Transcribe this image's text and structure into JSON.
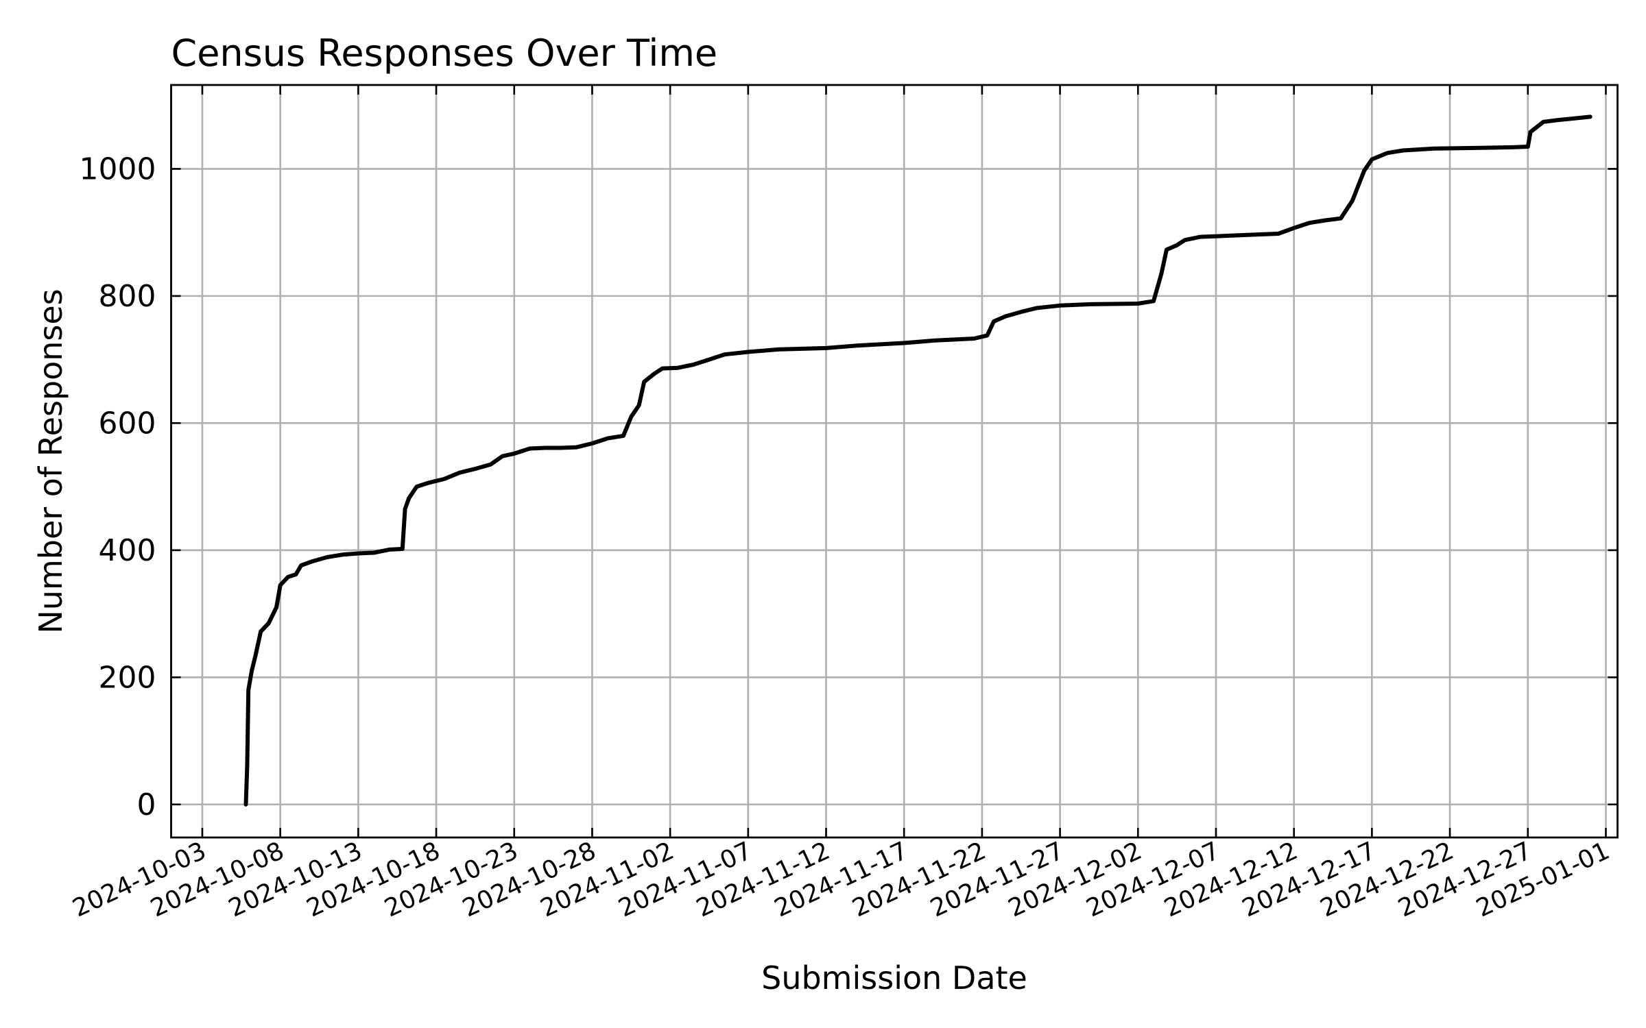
{
  "chart_data": {
    "type": "line",
    "title": "Census Responses Over Time",
    "xlabel": "Submission Date",
    "ylabel": "Number of Responses",
    "xlim": [
      "2024-10-03",
      "2025-01-01"
    ],
    "ylim": [
      -52,
      1132
    ],
    "grid": true,
    "y_ticks": [
      0,
      200,
      400,
      600,
      800,
      1000
    ],
    "x_ticks": [
      "2024-10-03",
      "2024-10-08",
      "2024-10-13",
      "2024-10-18",
      "2024-10-23",
      "2024-10-28",
      "2024-11-02",
      "2024-11-07",
      "2024-11-12",
      "2024-11-17",
      "2024-11-22",
      "2024-11-27",
      "2024-12-02",
      "2024-12-07",
      "2024-12-12",
      "2024-12-17",
      "2024-12-22",
      "2024-12-27",
      "2025-01-01"
    ],
    "series": [
      {
        "color": "#000000",
        "points": [
          [
            "2024-10-05T19:00",
            0
          ],
          [
            "2024-10-05T21:00",
            60
          ],
          [
            "2024-10-05T23:00",
            180
          ],
          [
            "2024-10-06T04:00",
            210
          ],
          [
            "2024-10-06T10:00",
            235
          ],
          [
            "2024-10-06T18:00",
            272
          ],
          [
            "2024-10-07T06:00",
            285
          ],
          [
            "2024-10-07T18:00",
            310
          ],
          [
            "2024-10-08T00:00",
            345
          ],
          [
            "2024-10-08T12:00",
            358
          ],
          [
            "2024-10-09T00:00",
            362
          ],
          [
            "2024-10-09T08:00",
            376
          ],
          [
            "2024-10-10T00:00",
            382
          ],
          [
            "2024-10-11T00:00",
            389
          ],
          [
            "2024-10-12T00:00",
            393
          ],
          [
            "2024-10-13T00:00",
            395
          ],
          [
            "2024-10-14T00:00",
            396
          ],
          [
            "2024-10-15T00:00",
            401
          ],
          [
            "2024-10-15T20:00",
            402
          ],
          [
            "2024-10-16T00:00",
            465
          ],
          [
            "2024-10-16T06:00",
            482
          ],
          [
            "2024-10-16T18:00",
            500
          ],
          [
            "2024-10-17T12:00",
            506
          ],
          [
            "2024-10-18T12:00",
            512
          ],
          [
            "2024-10-19T12:00",
            522
          ],
          [
            "2024-10-20T12:00",
            528
          ],
          [
            "2024-10-21T12:00",
            535
          ],
          [
            "2024-10-22T06:00",
            548
          ],
          [
            "2024-10-23T00:00",
            552
          ],
          [
            "2024-10-24T00:00",
            560
          ],
          [
            "2024-10-25T00:00",
            561
          ],
          [
            "2024-10-26T00:00",
            561
          ],
          [
            "2024-10-27T00:00",
            562
          ],
          [
            "2024-10-28T00:00",
            568
          ],
          [
            "2024-10-29T00:00",
            576
          ],
          [
            "2024-10-30T00:00",
            580
          ],
          [
            "2024-10-30T12:00",
            610
          ],
          [
            "2024-10-31T00:00",
            628
          ],
          [
            "2024-10-31T08:00",
            665
          ],
          [
            "2024-11-01T00:00",
            678
          ],
          [
            "2024-11-01T12:00",
            686
          ],
          [
            "2024-11-02T12:00",
            687
          ],
          [
            "2024-11-03T12:00",
            692
          ],
          [
            "2024-11-04T12:00",
            700
          ],
          [
            "2024-11-05T12:00",
            708
          ],
          [
            "2024-11-07T00:00",
            712
          ],
          [
            "2024-11-09T00:00",
            716
          ],
          [
            "2024-11-12T00:00",
            718
          ],
          [
            "2024-11-14T00:00",
            722
          ],
          [
            "2024-11-17T00:00",
            726
          ],
          [
            "2024-11-19T00:00",
            730
          ],
          [
            "2024-11-21T12:00",
            733
          ],
          [
            "2024-11-22T08:00",
            738
          ],
          [
            "2024-11-22T18:00",
            760
          ],
          [
            "2024-11-23T12:00",
            768
          ],
          [
            "2024-11-24T12:00",
            775
          ],
          [
            "2024-11-25T12:00",
            781
          ],
          [
            "2024-11-27T00:00",
            785
          ],
          [
            "2024-11-29T00:00",
            787
          ],
          [
            "2024-12-02T00:00",
            788
          ],
          [
            "2024-12-03T00:00",
            792
          ],
          [
            "2024-12-03T12:00",
            835
          ],
          [
            "2024-12-03T20:00",
            873
          ],
          [
            "2024-12-04T12:00",
            880
          ],
          [
            "2024-12-05T00:00",
            888
          ],
          [
            "2024-12-06T00:00",
            893
          ],
          [
            "2024-12-08T00:00",
            895
          ],
          [
            "2024-12-10T00:00",
            897
          ],
          [
            "2024-12-11T00:00",
            898
          ],
          [
            "2024-12-12T00:00",
            907
          ],
          [
            "2024-12-13T00:00",
            915
          ],
          [
            "2024-12-14T00:00",
            919
          ],
          [
            "2024-12-15T00:00",
            922
          ],
          [
            "2024-12-15T18:00",
            950
          ],
          [
            "2024-12-16T12:00",
            997
          ],
          [
            "2024-12-17T00:00",
            1015
          ],
          [
            "2024-12-18T00:00",
            1025
          ],
          [
            "2024-12-19T00:00",
            1029
          ],
          [
            "2024-12-21T00:00",
            1032
          ],
          [
            "2024-12-24T00:00",
            1033
          ],
          [
            "2024-12-26T00:00",
            1034
          ],
          [
            "2024-12-27T00:00",
            1035
          ],
          [
            "2024-12-27T04:00",
            1058
          ],
          [
            "2024-12-28T00:00",
            1074
          ],
          [
            "2024-12-29T00:00",
            1077
          ],
          [
            "2024-12-31T00:00",
            1082
          ]
        ]
      }
    ]
  }
}
